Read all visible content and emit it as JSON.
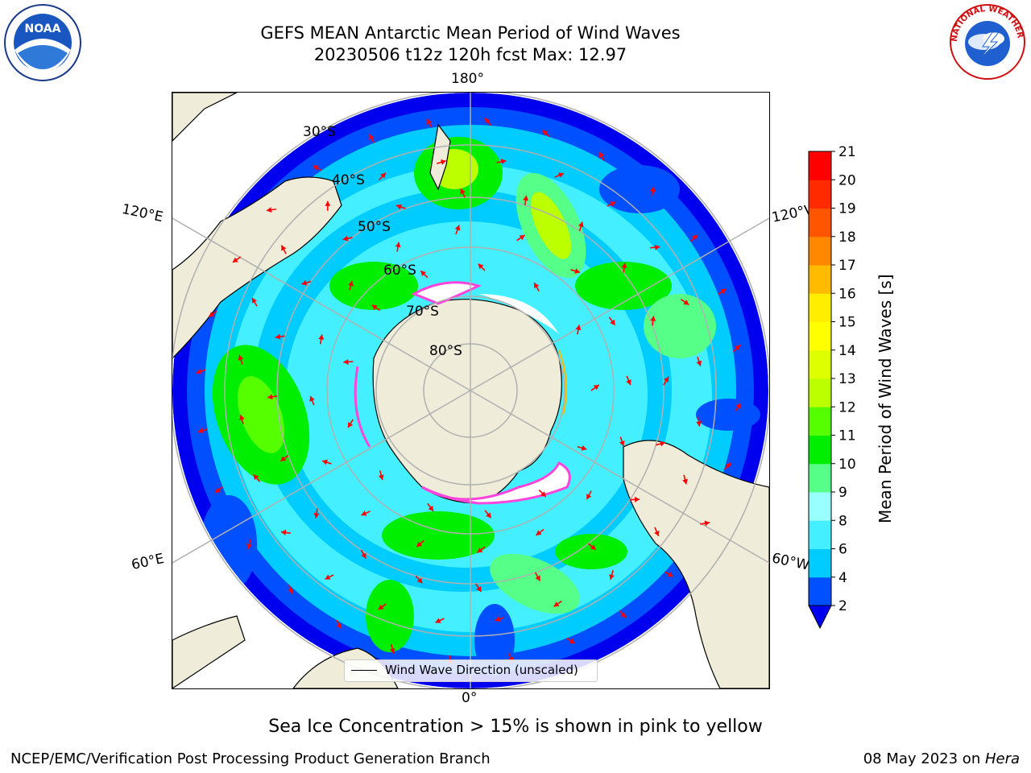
{
  "title": {
    "line1": "GEFS MEAN Antarctic Mean Period of Wind Waves",
    "line2": "20230506 t12z 120h fcst   Max: 12.97"
  },
  "map": {
    "projection": "south-polar-stereographic",
    "longitude_labels": {
      "top": "180°",
      "upper_left": "120°E",
      "upper_right": "120°W",
      "lower_left": "60°E",
      "lower_right": "60°W",
      "bottom": "0°"
    },
    "latitude_labels": [
      "30°S",
      "40°S",
      "50°S",
      "60°S",
      "70°S",
      "80°S"
    ],
    "colors": {
      "land": "#efedda",
      "ice": "#ffffff",
      "ice_edge": "#ff44dd",
      "arrow": "#ff0000",
      "grid": "#b0b0b0",
      "coast": "#000000"
    }
  },
  "legend": {
    "entry": "Wind Wave Direction (unscaled)"
  },
  "colorbar": {
    "label": "Mean Period of Wind Waves [s]",
    "ticks": [
      "2",
      "4",
      "6",
      "8",
      "9",
      "10",
      "11",
      "12",
      "13",
      "14",
      "15",
      "16",
      "17",
      "18",
      "19",
      "20",
      "21"
    ],
    "colors": [
      "#0050ff",
      "#00ccff",
      "#44f0ff",
      "#99ffff",
      "#55ff88",
      "#00ee00",
      "#55ff00",
      "#bbff00",
      "#ddff00",
      "#ffff00",
      "#ffee00",
      "#ffbb00",
      "#ff8800",
      "#ff5500",
      "#ff2a00",
      "#ff0000"
    ],
    "under_color": "#0000ee",
    "range": [
      2,
      21
    ]
  },
  "logos": {
    "left": "NOAA",
    "right_text": "NATIONAL WEATHER SERVICE"
  },
  "subtitle": "Sea Ice Concentration > 15% is shown in pink to yellow",
  "footer": {
    "left": "NCEP/EMC/Verification Post Processing Product Generation Branch",
    "date": "08 May 2023 on ",
    "host": "Hera"
  }
}
